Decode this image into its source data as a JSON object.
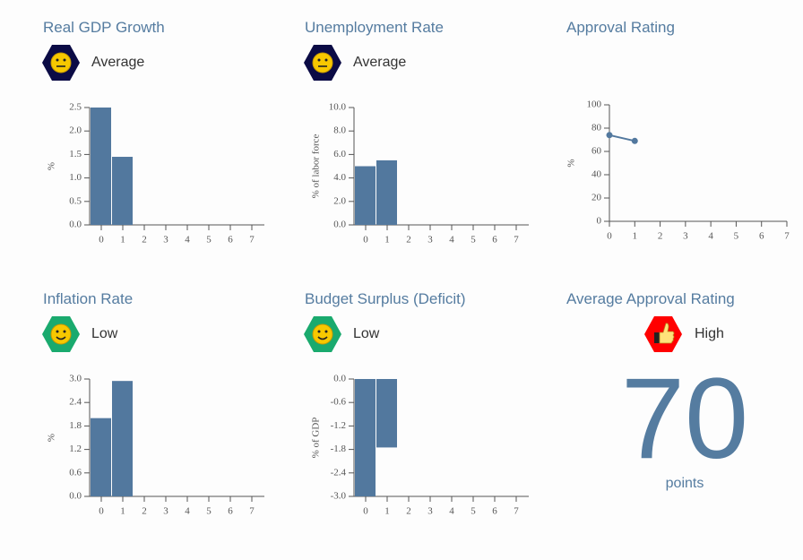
{
  "chart_data": [
    {
      "type": "bar",
      "title": "Real GDP Growth",
      "status": "Average",
      "ylabel": "%",
      "categories": [
        0,
        1,
        2,
        3,
        4,
        5,
        6,
        7
      ],
      "values": [
        2.5,
        1.45,
        null,
        null,
        null,
        null,
        null,
        null
      ],
      "color": "#52789e",
      "ylim": [
        0,
        2.5
      ],
      "yticks": [
        {
          "value": 0,
          "label": "0.0"
        },
        {
          "value": 0.5,
          "label": "0.5"
        },
        {
          "value": 1,
          "label": "1.0"
        },
        {
          "value": 1.5,
          "label": "1.5"
        },
        {
          "value": 2,
          "label": "2.0"
        },
        {
          "value": 2.5,
          "label": "2.5"
        }
      ]
    },
    {
      "type": "bar",
      "title": "Unemployment Rate",
      "status": "Average",
      "ylabel": "% of labor force",
      "categories": [
        0,
        1,
        2,
        3,
        4,
        5,
        6,
        7
      ],
      "values": [
        5.0,
        5.5,
        null,
        null,
        null,
        null,
        null,
        null
      ],
      "color": "#52789e",
      "ylim": [
        0,
        10
      ],
      "yticks": [
        {
          "value": 0,
          "label": "0.0"
        },
        {
          "value": 2,
          "label": "2.0"
        },
        {
          "value": 4,
          "label": "4.0"
        },
        {
          "value": 6,
          "label": "6.0"
        },
        {
          "value": 8,
          "label": "8.0"
        },
        {
          "value": 10,
          "label": "10.0"
        }
      ]
    },
    {
      "type": "line",
      "title": "Approval Rating",
      "ylabel": "%",
      "x": [
        0,
        1
      ],
      "values": [
        74,
        69
      ],
      "color": "#52789e",
      "xlim": [
        0,
        7
      ],
      "xticks": [
        0,
        1,
        2,
        3,
        4,
        5,
        6,
        7
      ],
      "ylim": [
        0,
        100
      ],
      "yticks": [
        0,
        20,
        40,
        60,
        80,
        100
      ]
    },
    {
      "type": "bar",
      "title": "Inflation Rate",
      "status": "Low",
      "ylabel": "%",
      "categories": [
        0,
        1,
        2,
        3,
        4,
        5,
        6,
        7
      ],
      "values": [
        2.0,
        2.95,
        null,
        null,
        null,
        null,
        null,
        null
      ],
      "color": "#52789e",
      "ylim": [
        0,
        3
      ],
      "yticks": [
        {
          "value": 0,
          "label": "0.0"
        },
        {
          "value": 0.6,
          "label": "0.6"
        },
        {
          "value": 1.2,
          "label": "1.2"
        },
        {
          "value": 1.8,
          "label": "1.8"
        },
        {
          "value": 2.4,
          "label": "2.4"
        },
        {
          "value": 3,
          "label": "3.0"
        }
      ]
    },
    {
      "type": "bar",
      "title": "Budget Surplus (Deficit)",
      "status": "Low",
      "ylabel": "% of GDP",
      "categories": [
        0,
        1,
        2,
        3,
        4,
        5,
        6,
        7
      ],
      "values": [
        -3.0,
        -1.75,
        null,
        null,
        null,
        null,
        null,
        null
      ],
      "color": "#52789e",
      "ylim": [
        -3,
        0
      ],
      "yticks": [
        {
          "value": 0,
          "label": "0.0"
        },
        {
          "value": -0.6,
          "label": "-0.6"
        },
        {
          "value": -1.2,
          "label": "-1.2"
        },
        {
          "value": -1.8,
          "label": "-1.8"
        },
        {
          "value": -2.4,
          "label": "-2.4"
        },
        {
          "value": -3,
          "label": "-3.0"
        }
      ]
    }
  ],
  "summary": {
    "title": "Average Approval Rating",
    "status": "High",
    "value": 70,
    "unit": "points"
  }
}
